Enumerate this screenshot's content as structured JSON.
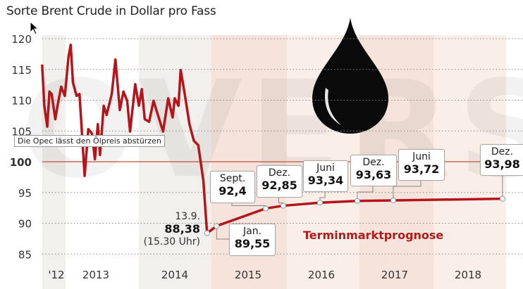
{
  "chart_data": {
    "type": "line",
    "title": "Sorte Brent Crude in Dollar pro Fass",
    "ylim": [
      85,
      120
    ],
    "xlim": [
      2012.6,
      2019.0
    ],
    "yticks": [
      120,
      115,
      110,
      105,
      100,
      95,
      90,
      85
    ],
    "ytick_labels": [
      "120",
      "115",
      "110",
      "105",
      "100",
      "95",
      "90",
      "85"
    ],
    "reference_line": 100,
    "xtick_labels": [
      {
        "label": "'12",
        "t": 2012.8
      },
      {
        "label": "2013",
        "t": 2013.5
      },
      {
        "label": "2014",
        "t": 2014.5
      },
      {
        "label": "2015",
        "t": 2015.5
      },
      {
        "label": "2016",
        "t": 2016.5
      },
      {
        "label": "2017",
        "t": 2017.5
      },
      {
        "label": "2018",
        "t": 2018.5
      }
    ],
    "historical": [
      [
        2012.69,
        115.8
      ],
      [
        2012.72,
        109.1
      ],
      [
        2012.76,
        105.7
      ],
      [
        2012.79,
        111.4
      ],
      [
        2012.82,
        111.0
      ],
      [
        2012.87,
        106.9
      ],
      [
        2012.9,
        109.1
      ],
      [
        2012.95,
        112.2
      ],
      [
        2013.0,
        110.7
      ],
      [
        2013.05,
        117.1
      ],
      [
        2013.08,
        119.0
      ],
      [
        2013.11,
        112.9
      ],
      [
        2013.16,
        110.7
      ],
      [
        2013.2,
        111.0
      ],
      [
        2013.27,
        97.7
      ],
      [
        2013.32,
        105.3
      ],
      [
        2013.37,
        104.6
      ],
      [
        2013.41,
        100.4
      ],
      [
        2013.45,
        106.1
      ],
      [
        2013.48,
        101.1
      ],
      [
        2013.53,
        109.1
      ],
      [
        2013.57,
        107.6
      ],
      [
        2013.64,
        111.0
      ],
      [
        2013.69,
        116.6
      ],
      [
        2013.75,
        108.4
      ],
      [
        2013.8,
        111.4
      ],
      [
        2013.85,
        109.9
      ],
      [
        2013.89,
        104.9
      ],
      [
        2013.96,
        112.6
      ],
      [
        2014.01,
        109.1
      ],
      [
        2014.05,
        111.8
      ],
      [
        2014.09,
        106.9
      ],
      [
        2014.15,
        106.5
      ],
      [
        2014.21,
        109.9
      ],
      [
        2014.28,
        107.2
      ],
      [
        2014.34,
        104.9
      ],
      [
        2014.41,
        110.3
      ],
      [
        2014.47,
        107.2
      ],
      [
        2014.5,
        110.3
      ],
      [
        2014.55,
        109.1
      ],
      [
        2014.58,
        114.9
      ],
      [
        2014.63,
        111.4
      ],
      [
        2014.7,
        106.1
      ],
      [
        2014.76,
        103.4
      ],
      [
        2014.82,
        102.7
      ],
      [
        2014.89,
        96.9
      ],
      [
        2014.94,
        88.38
      ]
    ],
    "forecast_series_name": "Terminmarktprognose",
    "forecast": [
      {
        "t": 2014.94,
        "value": 88.38
      },
      {
        "t": 2015.07,
        "value": 89.55,
        "month": "Jan.",
        "label": "89,55"
      },
      {
        "t": 2015.74,
        "value": 92.4,
        "month": "Sept.",
        "label": "92,4"
      },
      {
        "t": 2015.98,
        "value": 92.85,
        "month": "Dez.",
        "label": "92,85"
      },
      {
        "t": 2016.48,
        "value": 93.34,
        "month": "Juni",
        "label": "93,34"
      },
      {
        "t": 2016.99,
        "value": 93.63,
        "month": "Dez.",
        "label": "93,63"
      },
      {
        "t": 2017.48,
        "value": 93.72,
        "month": "Juni",
        "label": "93,72"
      },
      {
        "t": 2018.97,
        "value": 93.98,
        "month": "Dez.",
        "label": "93,98"
      }
    ],
    "start_point": {
      "date": "13.9.",
      "label": "88,38",
      "time": "(15.30 Uhr)"
    },
    "annotation": "Die Opec lässt den Ölpreis abstürzen",
    "colors": {
      "line": "#b3151b",
      "reference": "#c0503c",
      "grid": "#888888",
      "band_gray": "#f1f0ec",
      "band_pink": "#f6e4dc",
      "band_pink_light": "#faeee8"
    }
  }
}
